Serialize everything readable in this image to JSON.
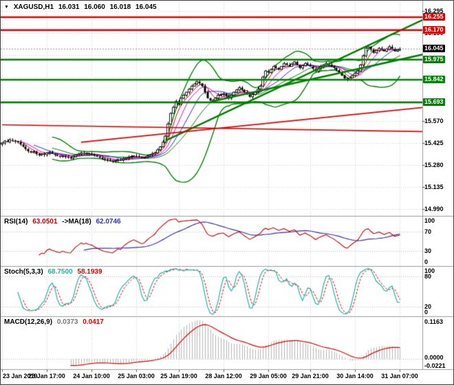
{
  "window": {
    "symbol_title": "XAGUSD,H1",
    "ohlc": [
      "16.031",
      "16.060",
      "16.018",
      "16.045"
    ]
  },
  "icons": {
    "symbol_dropdown": "▼"
  },
  "chart_data": {
    "type": "candlestick",
    "title": "XAGUSD,H1",
    "symbol": "XAGUSD",
    "timeframe": "H1",
    "background": "#FFFFFF",
    "grid_color": "#CFCFCF",
    "price_axis": {
      "max": 16.35,
      "min": 14.944,
      "tick_labels": [
        "16.295",
        "16.150",
        "15.570",
        "15.425",
        "15.280",
        "15.135",
        "14.990"
      ],
      "grid_values": [
        16.295,
        16.15,
        16.005,
        15.86,
        15.715,
        15.57,
        15.425,
        15.28,
        15.135,
        14.99
      ]
    },
    "time_axis": {
      "labels": [
        "23 Jan 2019",
        "23 Jan 17:00",
        "24 Jan 10:00",
        "25 Jan 03:00",
        "25 Jan 19:00",
        "28 Jan 12:00",
        "29 Jan 05:00",
        "29 Jan 21:00",
        "30 Jan 14:00",
        "31 Jan 07:00"
      ],
      "label_bars": [
        0,
        17,
        34,
        51,
        67,
        84,
        101,
        117,
        134,
        151
      ]
    },
    "candles": {
      "bars": 152,
      "right_margin_bars": 8,
      "up_color": "#FFFFFF",
      "down_color": "#000000",
      "outline_color": "#000000",
      "closes": [
        15.425,
        15.438,
        15.432,
        15.445,
        15.44,
        15.436,
        15.43,
        15.415,
        15.4,
        15.385,
        15.37,
        15.362,
        15.368,
        15.352,
        15.345,
        15.352,
        15.348,
        15.36,
        15.365,
        15.355,
        15.348,
        15.34,
        15.335,
        15.34,
        15.332,
        15.328,
        15.325,
        15.335,
        15.345,
        15.352,
        15.36,
        15.355,
        15.358,
        15.352,
        15.35,
        15.342,
        15.335,
        15.328,
        15.32,
        15.315,
        15.312,
        15.308,
        15.305,
        15.31,
        15.315,
        15.312,
        15.32,
        15.326,
        15.332,
        15.336,
        15.34,
        15.336,
        15.332,
        15.328,
        15.33,
        15.338,
        15.345,
        15.352,
        15.36,
        15.38,
        15.4,
        15.43,
        15.47,
        15.55,
        15.62,
        15.66,
        15.7,
        15.68,
        15.72,
        15.74,
        15.76,
        15.78,
        15.8,
        15.815,
        15.83,
        15.818,
        15.8,
        15.76,
        15.72,
        15.705,
        15.7,
        15.72,
        15.74,
        15.745,
        15.75,
        15.735,
        15.72,
        15.74,
        15.76,
        15.775,
        15.79,
        15.775,
        15.76,
        15.745,
        15.73,
        15.745,
        15.76,
        15.78,
        15.8,
        15.86,
        15.9,
        15.89,
        15.91,
        15.93,
        15.92,
        15.91,
        15.93,
        15.95,
        15.94,
        15.93,
        15.945,
        15.96,
        15.94,
        15.92,
        15.935,
        15.95,
        15.94,
        15.93,
        15.915,
        15.9,
        15.915,
        15.93,
        15.94,
        15.95,
        15.94,
        15.93,
        15.92,
        15.905,
        15.89,
        15.87,
        15.85,
        15.84,
        15.855,
        15.87,
        15.885,
        15.9,
        15.94,
        16.0,
        16.05,
        16.06,
        16.04,
        16.02,
        16.035,
        16.05,
        16.04,
        16.03,
        16.045,
        16.06,
        16.045,
        16.03,
        16.038,
        16.045
      ]
    },
    "overlays": {
      "bollinger": {
        "period": 20,
        "deviation": 2,
        "color": "#008000"
      },
      "moving_averages": [
        {
          "period": 5,
          "color": "#E00000"
        },
        {
          "period": 8,
          "color": "#E000E0"
        },
        {
          "period": 13,
          "color": "#2828C8"
        }
      ]
    },
    "levels": [
      {
        "price": 16.255,
        "label": "16.255",
        "color": "#E00000",
        "kind": "resistance"
      },
      {
        "price": 16.17,
        "label": "16.170",
        "color": "#E00000",
        "kind": "resistance"
      },
      {
        "price": 15.975,
        "label": "15.975",
        "color": "#008000",
        "kind": "support"
      },
      {
        "price": 15.842,
        "label": "15.842",
        "color": "#008000",
        "kind": "support"
      },
      {
        "price": 15.693,
        "label": "15.693",
        "color": "#008000",
        "kind": "support"
      }
    ],
    "bid": {
      "price": 16.045,
      "label": "16.045",
      "box_color": "#000000"
    },
    "trendlines": [
      {
        "b1": 62,
        "p1": 15.44,
        "b2": 160,
        "p2": 16.24,
        "color": "#008000",
        "width": 2.6
      },
      {
        "b1": 80,
        "p1": 15.7,
        "b2": 160,
        "p2": 16.01,
        "color": "#008000",
        "width": 2.6
      },
      {
        "b1": 0,
        "p1": 15.545,
        "b2": 160,
        "p2": 15.5,
        "color": "#E00000",
        "width": 1.6
      },
      {
        "b1": 30,
        "p1": 15.43,
        "b2": 160,
        "p2": 15.66,
        "color": "#E00000",
        "width": 1.6
      }
    ],
    "indicators": {
      "rsi": {
        "label": "RSI(14)",
        "value": "63.0501",
        "ma_label": "->MA(18)",
        "ma_value": "62.0746",
        "period": 14,
        "ma_period": 18,
        "range": [
          0,
          100
        ],
        "levels": [
          70,
          30
        ],
        "scale_labels": [
          "100",
          "70",
          "30",
          "0"
        ],
        "line_color": "#C80000",
        "ma_color": "#3232B4"
      },
      "stoch": {
        "label": "Stoch(5,3,3)",
        "k_value": "68.7500",
        "d_value": "58.1939",
        "k_period": 5,
        "d_period": 3,
        "slowing": 3,
        "range": [
          0,
          100
        ],
        "levels": [
          80,
          20
        ],
        "scale_labels": [
          "100",
          "80",
          "20",
          "0"
        ],
        "k_color": "#20B2AA",
        "d_color": "#E00000"
      },
      "macd": {
        "label": "MACD(12,26,9)",
        "macd_value": "0.0373",
        "signal_value": "0.0417",
        "fast": 12,
        "slow": 26,
        "signal": 9,
        "scale_labels": [
          "0.1163",
          "0.0000",
          "-0.0221"
        ],
        "hist_color": "#B4B4B4",
        "signal_color": "#E00000"
      }
    }
  }
}
